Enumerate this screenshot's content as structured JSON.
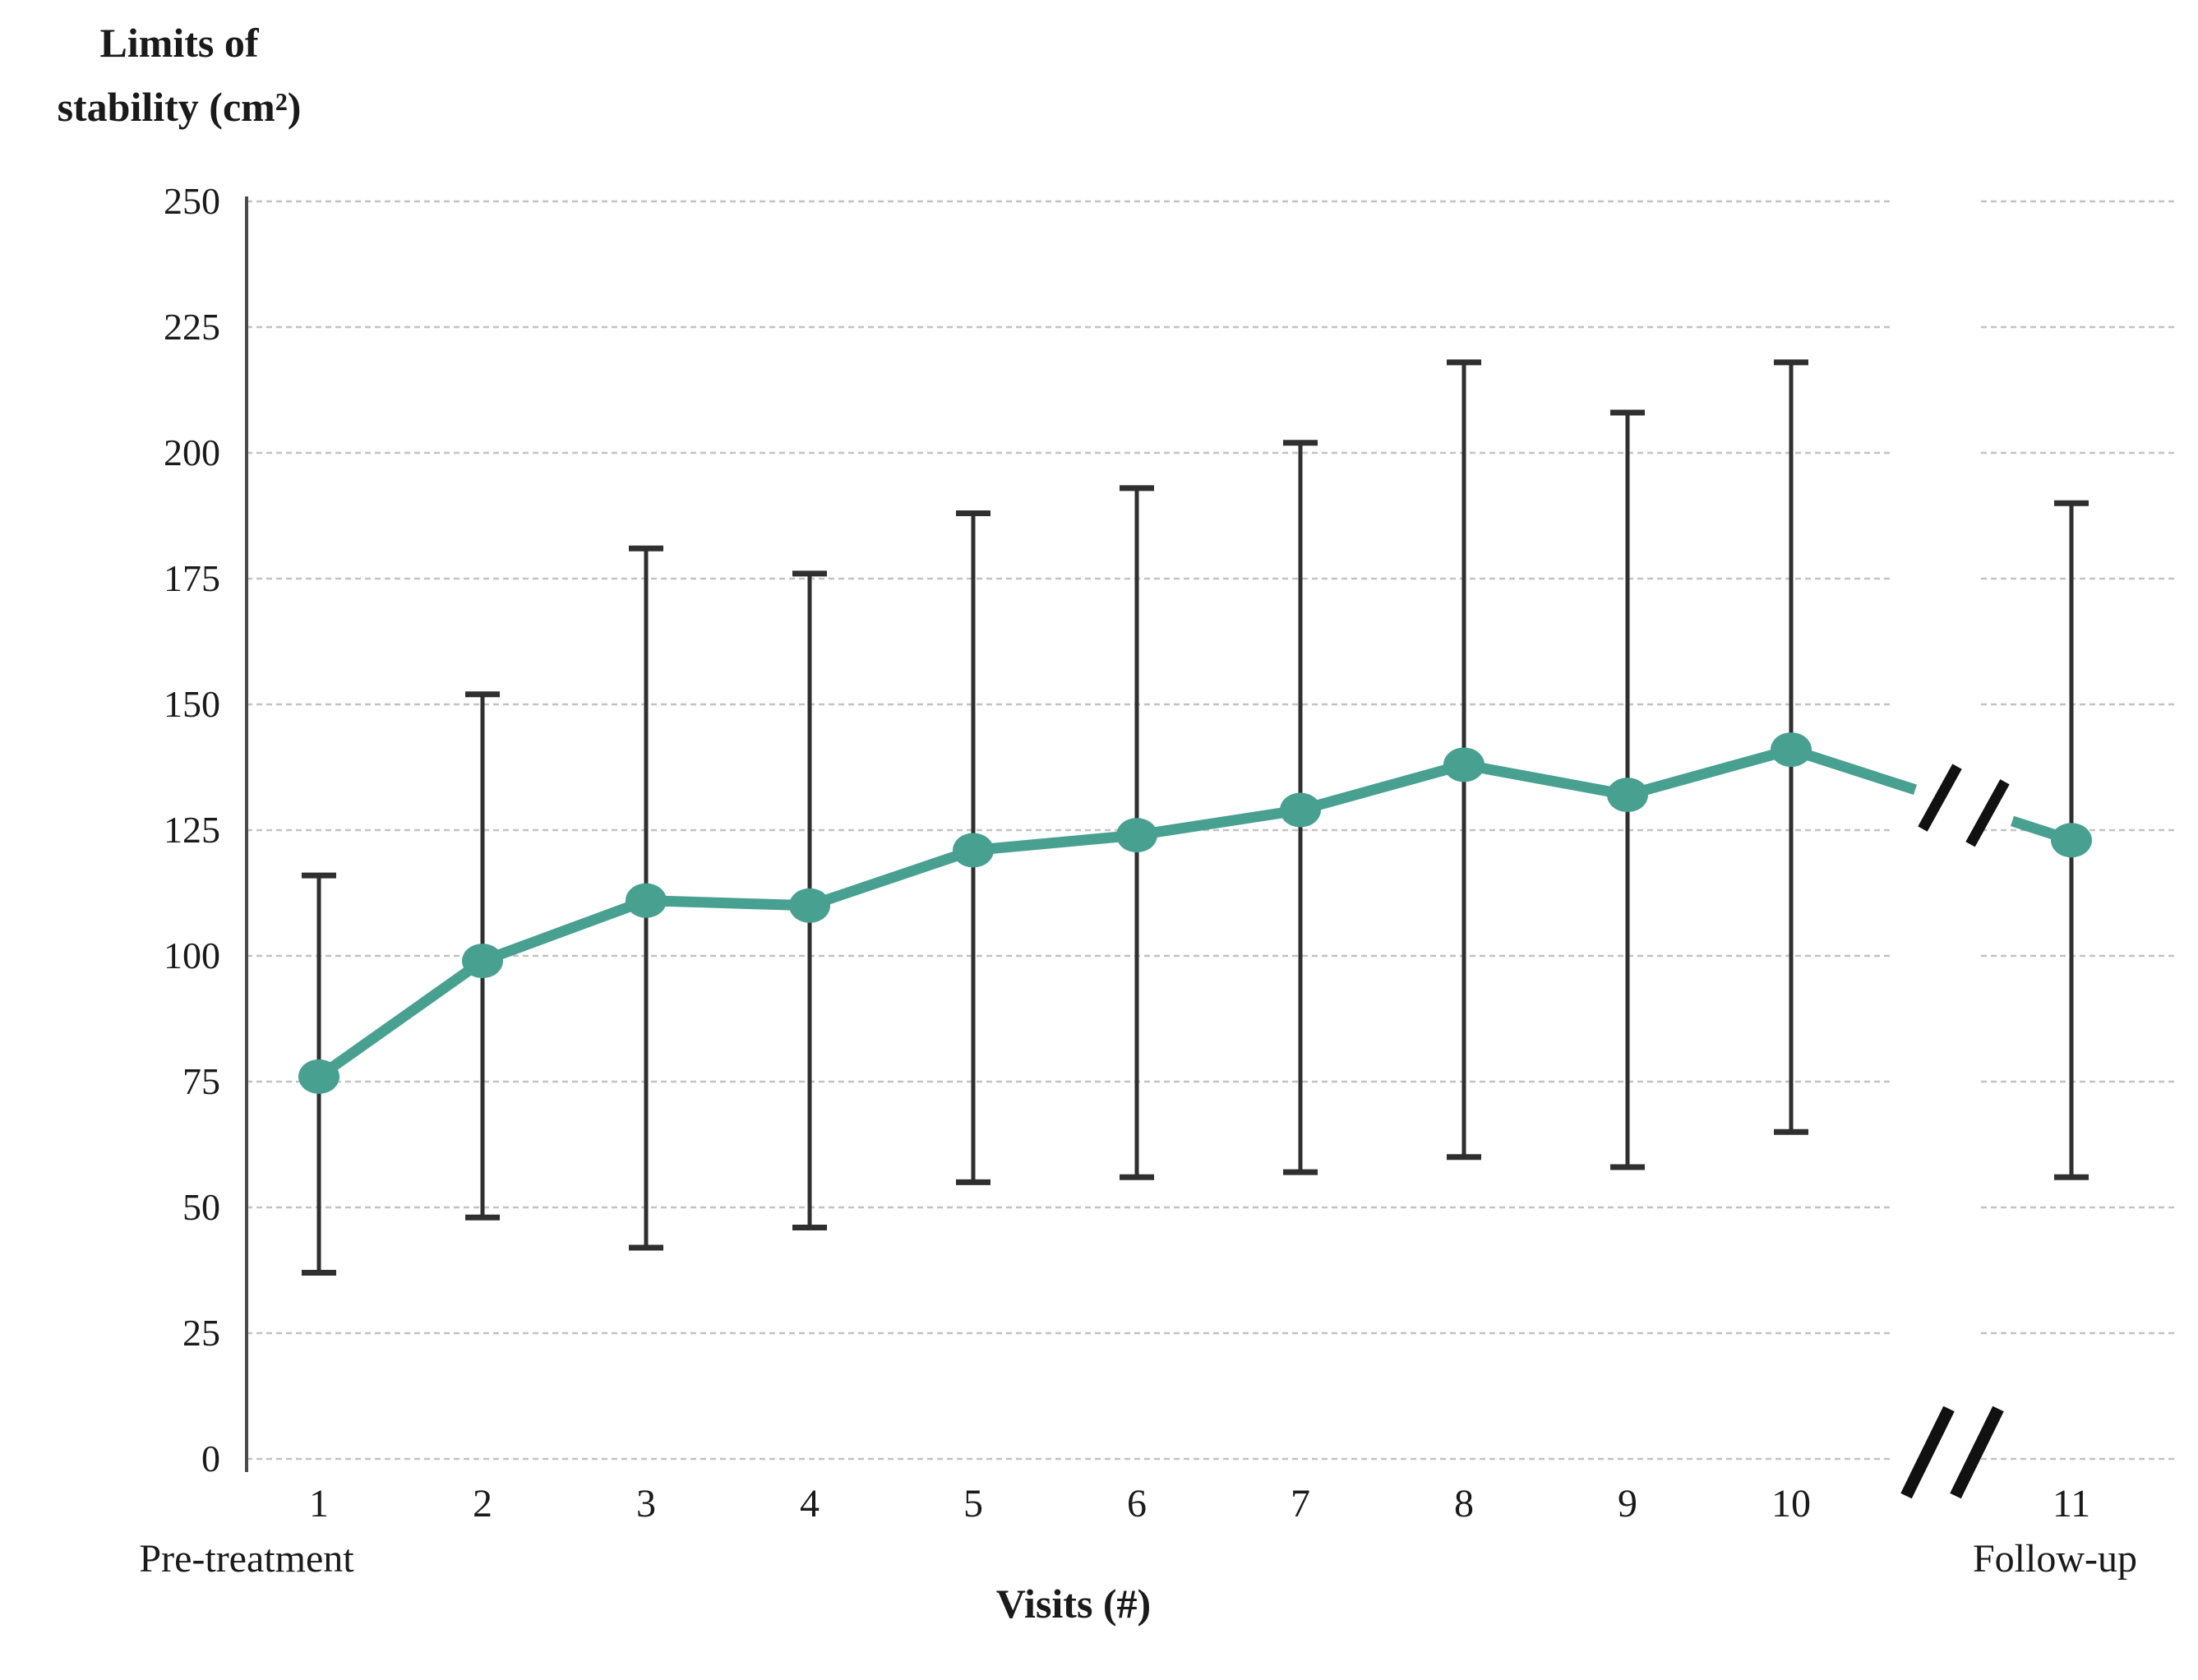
{
  "chart_data": {
    "type": "line",
    "title": "",
    "ylabel": "Limits of stability (cm²)",
    "ylabel_lines": [
      "Limits of",
      "stability (cm²)"
    ],
    "xlabel": "Visits (#)",
    "ylim": [
      0,
      250
    ],
    "ytick_step": 25,
    "yticks": [
      250,
      225,
      200,
      175,
      150,
      125,
      100,
      75,
      50,
      25,
      0
    ],
    "grid": true,
    "legend": "none",
    "x_categories": [
      "1",
      "2",
      "3",
      "4",
      "5",
      "6",
      "7",
      "8",
      "9",
      "10",
      "11"
    ],
    "x_sublabels": [
      {
        "category": "1",
        "label": "Pre-treatment"
      },
      {
        "category": "11",
        "label": "Follow-up"
      }
    ],
    "axis_break": {
      "between_categories": [
        "10",
        "11"
      ],
      "line_symbol": "//",
      "axis_symbol": "//"
    },
    "series": [
      {
        "name": "Limits of stability",
        "color": "#48A091",
        "x": [
          1,
          2,
          3,
          4,
          5,
          6,
          7,
          8,
          9,
          10,
          11
        ],
        "means": [
          76,
          99,
          111,
          110,
          121,
          124,
          129,
          138,
          132,
          141,
          123
        ],
        "error_low": [
          37,
          48,
          42,
          46,
          55,
          56,
          57,
          60,
          58,
          65,
          56
        ],
        "error_high": [
          116,
          152,
          181,
          176,
          188,
          193,
          202,
          218,
          208,
          218,
          190
        ]
      }
    ],
    "colors": {
      "line": "#48A091",
      "error_bar": "#2F2F2F",
      "gridline": "#C2C2C2",
      "axis": "#4A4A4A",
      "text": "#1A1A1A"
    }
  }
}
